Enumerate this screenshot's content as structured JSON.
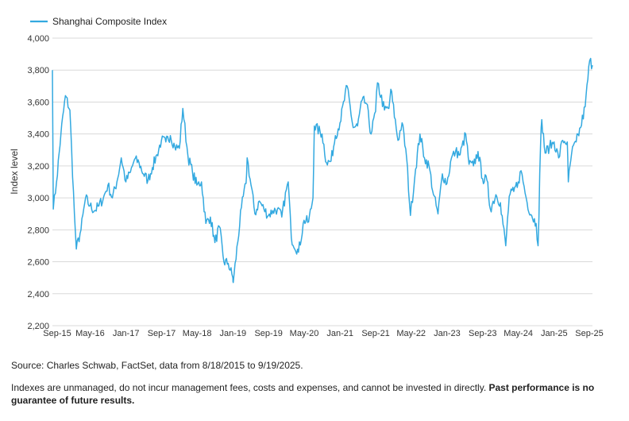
{
  "chart_data": {
    "type": "line",
    "title": "",
    "xlabel": "",
    "ylabel": "Index level",
    "ylim": [
      2200,
      4000
    ],
    "y_ticks": [
      "2,200",
      "2,400",
      "2,600",
      "2,800",
      "3,000",
      "3,200",
      "3,400",
      "3,600",
      "3,800",
      "4,000"
    ],
    "x_ticks": [
      "Sep-15",
      "May-16",
      "Jan-17",
      "Sep-17",
      "May-18",
      "Jan-19",
      "Sep-19",
      "May-20",
      "Jan-21",
      "Sep-21",
      "May-22",
      "Jan-23",
      "Sep-23",
      "May-24",
      "Jan-25",
      "Sep-25"
    ],
    "legend": "top-left",
    "grid": true,
    "color": "#33a9e0",
    "series": [
      {
        "name": "Shanghai Composite Index",
        "x": [
          "2015-08-18",
          "2015-08-24",
          "2015-09-15",
          "2015-10-15",
          "2015-11-15",
          "2015-12-15",
          "2016-01-15",
          "2016-01-28",
          "2016-02-29",
          "2016-03-31",
          "2016-04-30",
          "2016-05-31",
          "2016-06-30",
          "2016-07-31",
          "2016-08-31",
          "2016-09-30",
          "2016-10-31",
          "2016-11-30",
          "2016-12-31",
          "2017-01-31",
          "2017-02-28",
          "2017-03-31",
          "2017-04-30",
          "2017-05-31",
          "2017-06-30",
          "2017-07-31",
          "2017-08-31",
          "2017-09-30",
          "2017-10-31",
          "2017-11-30",
          "2017-12-31",
          "2018-01-24",
          "2018-02-28",
          "2018-03-31",
          "2018-04-30",
          "2018-05-31",
          "2018-06-30",
          "2018-07-31",
          "2018-08-31",
          "2018-09-30",
          "2018-10-31",
          "2018-11-30",
          "2018-12-31",
          "2019-01-03",
          "2019-02-28",
          "2019-03-31",
          "2019-04-08",
          "2019-05-31",
          "2019-06-30",
          "2019-07-31",
          "2019-08-31",
          "2019-09-30",
          "2019-10-31",
          "2019-11-30",
          "2019-12-31",
          "2020-01-13",
          "2020-02-03",
          "2020-03-23",
          "2020-04-30",
          "2020-05-31",
          "2020-06-30",
          "2020-07-09",
          "2020-08-31",
          "2020-09-30",
          "2020-10-31",
          "2020-11-30",
          "2020-12-31",
          "2021-02-18",
          "2021-03-31",
          "2021-04-30",
          "2021-05-31",
          "2021-06-30",
          "2021-07-31",
          "2021-08-31",
          "2021-09-13",
          "2021-10-31",
          "2021-11-30",
          "2021-12-13",
          "2022-01-31",
          "2022-02-28",
          "2022-03-31",
          "2022-04-26",
          "2022-05-31",
          "2022-06-30",
          "2022-07-31",
          "2022-08-31",
          "2022-09-30",
          "2022-10-31",
          "2022-11-30",
          "2022-12-31",
          "2023-01-31",
          "2023-02-28",
          "2023-03-31",
          "2023-05-08",
          "2023-05-31",
          "2023-06-30",
          "2023-07-31",
          "2023-08-31",
          "2023-09-30",
          "2023-10-23",
          "2023-11-30",
          "2023-12-31",
          "2024-02-05",
          "2024-02-29",
          "2024-03-31",
          "2024-04-30",
          "2024-05-20",
          "2024-06-30",
          "2024-07-31",
          "2024-08-31",
          "2024-09-13",
          "2024-09-30",
          "2024-10-08",
          "2024-10-31",
          "2024-11-30",
          "2024-12-31",
          "2025-01-31",
          "2025-02-28",
          "2025-03-31",
          "2025-04-07",
          "2025-04-30",
          "2025-05-31",
          "2025-06-30",
          "2025-07-31",
          "2025-08-31",
          "2025-09-19"
        ],
        "values": [
          3800,
          2930,
          3100,
          3400,
          3640,
          3550,
          2900,
          2680,
          2800,
          3000,
          2950,
          2920,
          2950,
          3000,
          3080,
          3000,
          3100,
          3250,
          3100,
          3160,
          3240,
          3220,
          3150,
          3110,
          3190,
          3270,
          3360,
          3350,
          3390,
          3320,
          3310,
          3560,
          3260,
          3160,
          3080,
          3100,
          2840,
          2880,
          2720,
          2820,
          2600,
          2590,
          2500,
          2470,
          2940,
          3090,
          3250,
          2900,
          2980,
          2930,
          2890,
          2920,
          2930,
          2880,
          3050,
          3100,
          2750,
          2660,
          2860,
          2850,
          3000,
          3450,
          3400,
          3220,
          3230,
          3390,
          3470,
          3700,
          3440,
          3450,
          3610,
          3590,
          3400,
          3540,
          3720,
          3550,
          3560,
          3680,
          3360,
          3470,
          3250,
          2890,
          3180,
          3400,
          3250,
          3200,
          3020,
          2900,
          3150,
          3090,
          3250,
          3290,
          3270,
          3400,
          3210,
          3200,
          3290,
          3120,
          3110,
          2930,
          3020,
          2970,
          2700,
          3010,
          3040,
          3100,
          3170,
          2970,
          2890,
          2840,
          2700,
          3340,
          3490,
          3280,
          3320,
          3350,
          3250,
          3360,
          3350,
          3100,
          3280,
          3350,
          3440,
          3570,
          3860,
          3830
        ]
      }
    ]
  },
  "source_note": "Source: Charles Schwab, FactSet, data from 8/18/2015 to 9/19/2025.",
  "disclaimer": {
    "text": "Indexes are unmanaged, do not incur management fees, costs and expenses, and cannot be invested in directly.",
    "bold_text": "Past performance is no guarantee of future results."
  }
}
